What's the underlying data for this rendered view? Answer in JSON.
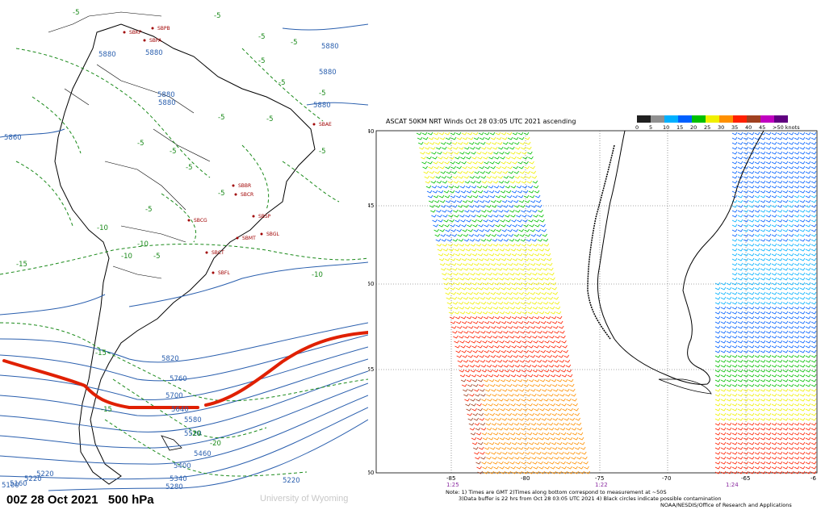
{
  "left_panel": {
    "caption": "00Z 28 Oct 2021   500 hPa",
    "credit": "University of Wyoming",
    "height_labels": [
      "5880",
      "5880",
      "5880",
      "5880",
      "5880",
      "5880",
      "5880",
      "5860",
      "5820",
      "5760",
      "5700",
      "5640",
      "5580",
      "5520",
      "5460",
      "5400",
      "5340",
      "5280",
      "5220",
      "5220",
      "5160",
      "5100",
      "5220"
    ],
    "temp_labels": [
      "-5",
      "-5",
      "-5",
      "-5",
      "-5",
      "-5",
      "-5",
      "-5",
      "-5",
      "-5",
      "-5",
      "-5",
      "-5",
      "-5",
      "-5",
      "-10",
      "-10",
      "-15",
      "-15",
      "-15",
      "-20",
      "-20",
      "-10",
      "-10",
      "-5"
    ],
    "stations": [
      "SBPB",
      "SBKP",
      "SBPA",
      "SBFL",
      "SBMT",
      "SBGL",
      "SBSP",
      "SBCG",
      "SBCT",
      "SBCR",
      "SBBR",
      "SBAE"
    ],
    "colors": {
      "height": "#2a5fae",
      "temp": "#1a8a1a",
      "jet": "#e02000",
      "station": "#a00000",
      "coast": "#000000"
    }
  },
  "right_panel": {
    "title": "ASCAT 50KM NRT Winds Oct 28 03:05 UTC 2021 ascending",
    "colorbar": {
      "ticks": [
        "0",
        "5",
        "10",
        "15",
        "20",
        "25",
        "30",
        "35",
        "40",
        "45",
        ">50 knots"
      ],
      "colors": [
        "#202020",
        "#909090",
        "#00b0ff",
        "#0060ff",
        "#00c000",
        "#f0f000",
        "#ff9000",
        "#ff2000",
        "#a04020",
        "#c000c0",
        "#600080"
      ]
    },
    "y_ticks": [
      "-40",
      "-45",
      "-50",
      "-55",
      "-60"
    ],
    "x_ticks": [
      "-85",
      "-80",
      "-75",
      "-70",
      "-65",
      "-6"
    ],
    "time_labels": [
      "1:25",
      "1:22",
      "1:24"
    ],
    "footnote_line1": "Note: 1) Times are GMT 2)Times along bottom correspond to measurement at ~50S",
    "footnote_line2": "3)Data buffer is 22 hrs from Oct 28 03:05 UTC 2021 4) Black circles indicate possible contamination",
    "footnote_line3": "NOAA/NESDIS/Office of Research and Applications"
  }
}
